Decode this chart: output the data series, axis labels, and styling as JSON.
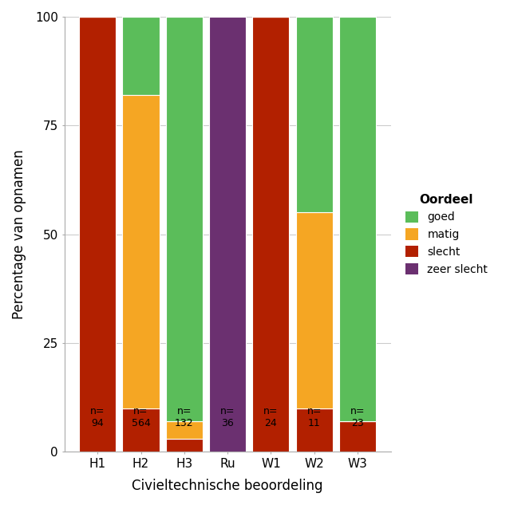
{
  "categories": [
    "H1",
    "H2",
    "H3",
    "Ru",
    "W1",
    "W2",
    "W3"
  ],
  "n_labels": [
    "n=\n94",
    "n=\n564",
    "n=\n132",
    "n=\n36",
    "n=\n24",
    "n=\n11",
    "n=\n23"
  ],
  "segments": {
    "slecht": [
      100,
      10,
      3,
      0,
      100,
      10,
      7
    ],
    "matig": [
      0,
      72,
      4,
      0,
      0,
      45,
      0
    ],
    "goed": [
      0,
      18,
      93,
      0,
      0,
      45,
      93
    ],
    "zeer slecht": [
      0,
      0,
      0,
      100,
      0,
      0,
      0
    ]
  },
  "colors": {
    "slecht": "#B22000",
    "matig": "#F5A623",
    "goed": "#5BBD5A",
    "zeer slecht": "#6B3070"
  },
  "legend_order": [
    "goed",
    "matig",
    "slecht",
    "zeer slecht"
  ],
  "legend_title": "Oordeel",
  "xlabel": "Civieltechnische beoordeling",
  "ylabel": "Percentage van opnamen",
  "ylim": [
    0,
    100
  ],
  "yticks": [
    0,
    25,
    50,
    75,
    100
  ],
  "background_color": "#FFFFFF",
  "bar_width": 0.85
}
